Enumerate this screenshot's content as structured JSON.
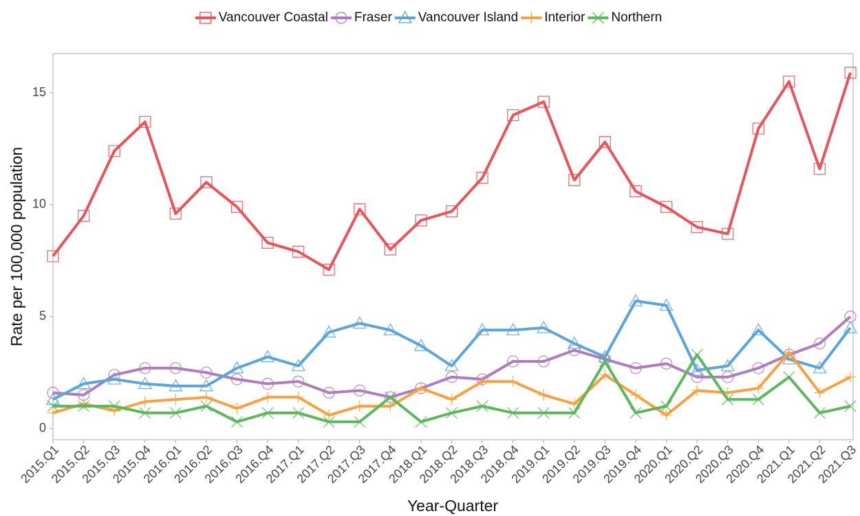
{
  "chart_data": {
    "type": "line",
    "x_label": "Year-Quarter",
    "y_label": "Rate per 100,000 population",
    "categories": [
      "2015.Q1",
      "2015.Q2",
      "2015.Q3",
      "2015.Q4",
      "2016.Q1",
      "2016.Q2",
      "2016.Q3",
      "2016.Q4",
      "2017.Q1",
      "2017.Q2",
      "2017.Q3",
      "2017.Q4",
      "2018.Q1",
      "2018.Q2",
      "2018.Q3",
      "2018.Q4",
      "2019.Q1",
      "2019.Q2",
      "2019.Q3",
      "2019.Q4",
      "2020.Q1",
      "2020.Q2",
      "2020.Q3",
      "2020.Q4",
      "2021.Q1",
      "2021.Q2",
      "2021.Q3"
    ],
    "series": [
      {
        "name": "Vancouver Coastal",
        "color": "#e8545a",
        "marker": "square",
        "values": [
          7.7,
          9.5,
          12.4,
          13.7,
          9.6,
          11.0,
          9.9,
          8.3,
          7.9,
          7.1,
          9.8,
          8.0,
          9.3,
          9.7,
          11.2,
          14.0,
          14.6,
          11.1,
          12.8,
          10.6,
          9.9,
          9.0,
          8.7,
          13.4,
          15.5,
          11.6,
          15.9
        ]
      },
      {
        "name": "Fraser",
        "color": "#b07cc0",
        "marker": "circle",
        "values": [
          1.6,
          1.5,
          2.4,
          2.7,
          2.7,
          2.5,
          2.2,
          2.0,
          2.1,
          1.6,
          1.7,
          1.4,
          1.8,
          2.3,
          2.2,
          3.0,
          3.0,
          3.5,
          3.1,
          2.7,
          2.9,
          2.3,
          2.3,
          2.7,
          3.3,
          3.8,
          5.0
        ]
      },
      {
        "name": "Vancouver Island",
        "color": "#5aa5db",
        "marker": "triangle",
        "values": [
          1.3,
          2.0,
          2.2,
          2.0,
          1.9,
          1.9,
          2.7,
          3.2,
          2.8,
          4.3,
          4.7,
          4.4,
          3.7,
          2.8,
          4.4,
          4.4,
          4.5,
          3.8,
          3.2,
          5.7,
          5.5,
          2.6,
          2.8,
          4.4,
          3.1,
          2.7,
          4.5
        ]
      },
      {
        "name": "Interior",
        "color": "#f7a23e",
        "marker": "plus",
        "values": [
          0.7,
          1.1,
          0.8,
          1.2,
          1.3,
          1.4,
          0.9,
          1.4,
          1.4,
          0.6,
          1.0,
          1.0,
          1.8,
          1.3,
          2.1,
          2.1,
          1.5,
          1.1,
          2.4,
          1.5,
          0.6,
          1.7,
          1.6,
          1.8,
          3.4,
          1.6,
          2.3
        ]
      },
      {
        "name": "Northern",
        "color": "#5cb85c",
        "marker": "x",
        "values": [
          1.0,
          1.0,
          1.0,
          0.7,
          0.7,
          1.0,
          0.3,
          0.7,
          0.7,
          0.3,
          0.3,
          1.4,
          0.3,
          0.7,
          1.0,
          0.7,
          0.7,
          0.7,
          3.0,
          0.7,
          1.0,
          3.3,
          1.3,
          1.3,
          2.3,
          0.7,
          1.0
        ]
      }
    ],
    "ylim": [
      -0.5,
      16.75
    ],
    "yticks": [
      0,
      5,
      10,
      15
    ],
    "legend": "top"
  }
}
